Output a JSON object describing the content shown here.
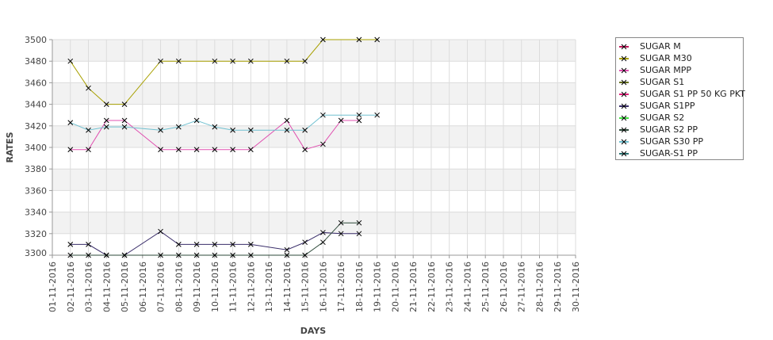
{
  "chart_data": {
    "type": "line",
    "title": "",
    "xlabel": "DAYS",
    "ylabel": "RATES",
    "ylim": [
      3300,
      3500
    ],
    "yticks": [
      3300,
      3320,
      3340,
      3360,
      3380,
      3400,
      3420,
      3440,
      3460,
      3480,
      3500
    ],
    "categories": [
      "01-11-2016",
      "02-11-2016",
      "03-11-2016",
      "04-11-2016",
      "05-11-2016",
      "06-11-2016",
      "07-11-2016",
      "08-11-2016",
      "09-11-2016",
      "10-11-2016",
      "11-11-2016",
      "12-11-2016",
      "13-11-2016",
      "14-11-2016",
      "15-11-2016",
      "16-11-2016",
      "17-11-2016",
      "18-11-2016",
      "19-11-2016",
      "20-11-2016",
      "21-11-2016",
      "22-11-2016",
      "23-11-2016",
      "24-11-2016",
      "25-11-2016",
      "26-11-2016",
      "27-11-2016",
      "28-11-2016",
      "29-11-2016",
      "30-11-2016"
    ],
    "legend_position": "right",
    "grid": true,
    "series": [
      {
        "name": "SUGAR M",
        "color": "#c0185a",
        "points": []
      },
      {
        "name": "SUGAR M30",
        "color": "#a8a000",
        "points": [
          [
            2,
            3480
          ],
          [
            3,
            3455
          ],
          [
            4,
            3440
          ],
          [
            5,
            3440
          ],
          [
            7,
            3480
          ],
          [
            8,
            3480
          ],
          [
            10,
            3480
          ],
          [
            11,
            3480
          ],
          [
            12,
            3480
          ],
          [
            14,
            3480
          ],
          [
            15,
            3480
          ],
          [
            16,
            3500
          ],
          [
            18,
            3500
          ],
          [
            19,
            3500
          ]
        ]
      },
      {
        "name": "SUGAR MPP",
        "color": "#e050b0",
        "points": [
          [
            2,
            3398
          ],
          [
            3,
            3398
          ],
          [
            4,
            3425
          ],
          [
            5,
            3425
          ],
          [
            7,
            3398
          ],
          [
            8,
            3398
          ],
          [
            9,
            3398
          ],
          [
            10,
            3398
          ],
          [
            11,
            3398
          ],
          [
            12,
            3398
          ],
          [
            14,
            3425
          ],
          [
            15,
            3398
          ],
          [
            16,
            3403
          ],
          [
            17,
            3425
          ],
          [
            18,
            3425
          ]
        ]
      },
      {
        "name": "SUGAR S1",
        "color": "#667020",
        "points": []
      },
      {
        "name": "SUGAR S1 PP 50 KG PKT",
        "color": "#e0207a",
        "points": []
      },
      {
        "name": "SUGAR S1PP",
        "color": "#3a2e6a",
        "points": [
          [
            2,
            3310
          ],
          [
            3,
            3310
          ],
          [
            4,
            3300
          ],
          [
            5,
            3300
          ],
          [
            7,
            3322
          ],
          [
            8,
            3310
          ],
          [
            9,
            3310
          ],
          [
            10,
            3310
          ],
          [
            11,
            3310
          ],
          [
            12,
            3310
          ],
          [
            14,
            3305
          ],
          [
            15,
            3312
          ],
          [
            16,
            3321
          ],
          [
            17,
            3320
          ],
          [
            18,
            3320
          ]
        ]
      },
      {
        "name": "SUGAR S2",
        "color": "#40e040",
        "points": []
      },
      {
        "name": "SUGAR S2 PP",
        "color": "#2e4a3a",
        "points": [
          [
            2,
            3300
          ],
          [
            3,
            3300
          ],
          [
            4,
            3300
          ],
          [
            5,
            3300
          ],
          [
            7,
            3300
          ],
          [
            8,
            3300
          ],
          [
            9,
            3300
          ],
          [
            10,
            3300
          ],
          [
            11,
            3300
          ],
          [
            12,
            3300
          ],
          [
            14,
            3300
          ],
          [
            15,
            3300
          ],
          [
            16,
            3312
          ],
          [
            17,
            3330
          ],
          [
            18,
            3330
          ]
        ]
      },
      {
        "name": "SUGAR S30 PP",
        "color": "#70c0d0",
        "points": [
          [
            2,
            3423
          ],
          [
            3,
            3416
          ],
          [
            4,
            3419
          ],
          [
            5,
            3419
          ],
          [
            7,
            3416
          ],
          [
            8,
            3419
          ],
          [
            9,
            3425
          ],
          [
            10,
            3419
          ],
          [
            11,
            3416
          ],
          [
            12,
            3416
          ],
          [
            14,
            3416
          ],
          [
            15,
            3416
          ],
          [
            16,
            3430
          ],
          [
            18,
            3430
          ],
          [
            19,
            3430
          ]
        ]
      },
      {
        "name": "SUGAR-S1 PP",
        "color": "#2a7070",
        "points": []
      }
    ]
  }
}
